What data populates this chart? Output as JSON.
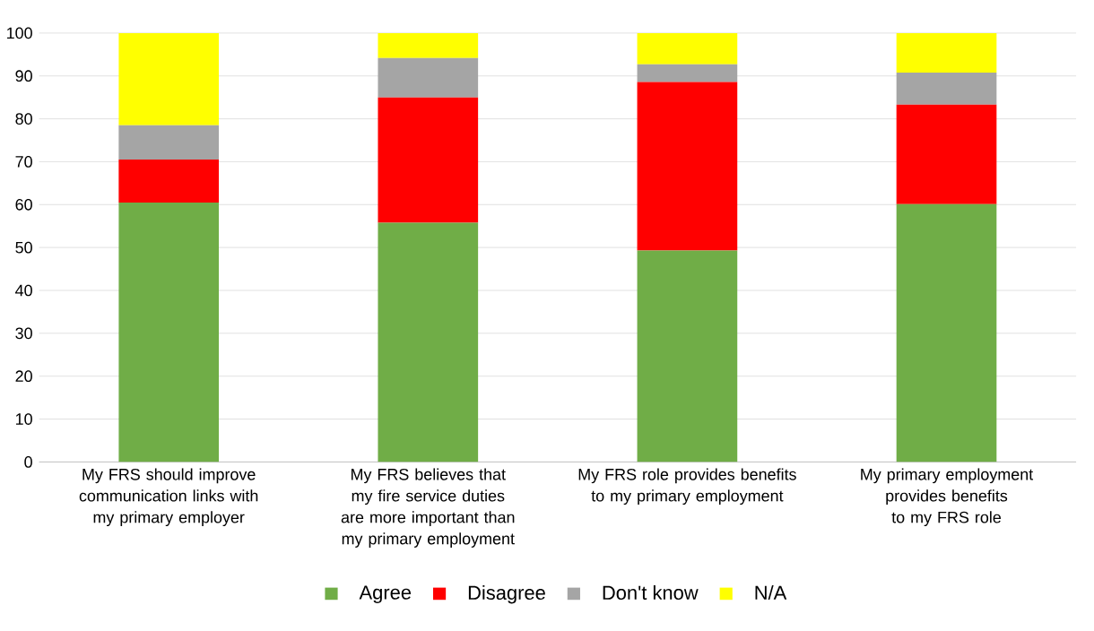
{
  "chart_data": {
    "type": "bar",
    "stacked": true,
    "categories": [
      "My FRS should improve communication links with my primary employer",
      "My FRS believes that my fire service duties are more important than my primary employment",
      "My FRS role provides benefits to my primary employment",
      "My primary employment provides benefits to my FRS role"
    ],
    "series": [
      {
        "name": "Agree",
        "color": "#70ad47",
        "values": [
          60.5,
          55.8,
          49.3,
          60.1
        ]
      },
      {
        "name": "Disagree",
        "color": "#ff0000",
        "values": [
          10,
          29.2,
          39.3,
          23.2
        ]
      },
      {
        "name": "Don't know",
        "color": "#a5a5a5",
        "values": [
          8,
          9.2,
          4.1,
          7.5
        ]
      },
      {
        "name": "N/A",
        "color": "#ffff00",
        "values": [
          21.5,
          5.8,
          7.3,
          9.2
        ]
      }
    ],
    "ylim": [
      0,
      100
    ],
    "yticks": [
      0,
      10,
      20,
      30,
      40,
      50,
      60,
      70,
      80,
      90,
      100
    ],
    "grid": "y",
    "legend": "bottom"
  }
}
